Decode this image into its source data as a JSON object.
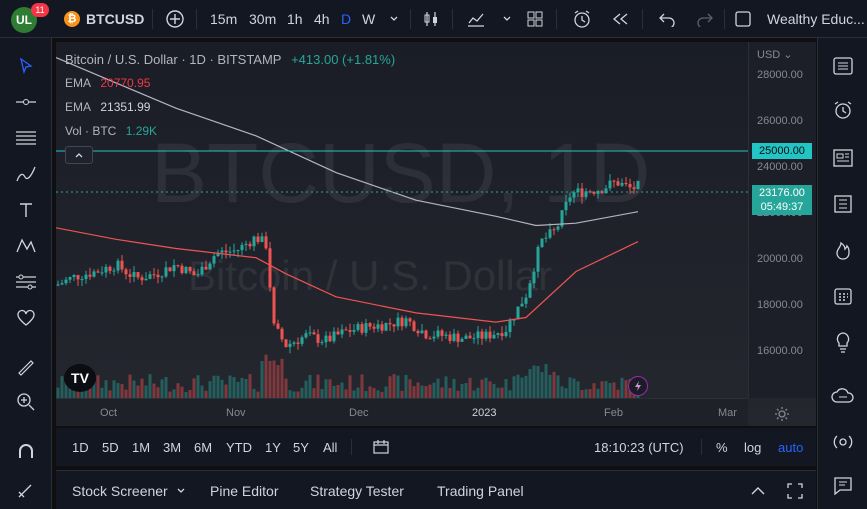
{
  "header": {
    "notification_count": "11",
    "symbol": "BTCUSD",
    "intervals": [
      "15m",
      "30m",
      "1h",
      "4h",
      "D",
      "W"
    ],
    "active_interval": "D",
    "account_name": "Wealthy Educ..."
  },
  "chart": {
    "title": "Bitcoin / U.S. Dollar · 1D · BITSTAMP",
    "change": "+413.00 (+1.81%)",
    "watermark_symbol": "BTCUSD, 1D",
    "watermark_name": "Bitcoin / U.S. Dollar",
    "indicators": [
      {
        "name": "EMA",
        "value": "20770.95",
        "color": "#f23645"
      },
      {
        "name": "EMA",
        "value": "21351.99",
        "color": "#b2b5be"
      },
      {
        "name": "Vol · BTC",
        "value": "1.29K",
        "color": "#26a69a"
      }
    ],
    "currency_label": "USD"
  },
  "chart_data": {
    "type": "candlestick",
    "price_ticks": [
      "28000.00",
      "26000.00",
      "24000.00",
      "22000.00",
      "20000.00",
      "18000.00",
      "16000.00"
    ],
    "horizontal_line": "25000.00",
    "last_price": "23176.00",
    "countdown": "05:49:37",
    "time_ticks": [
      "Oct",
      "Nov",
      "Dec",
      "2023",
      "Feb",
      "Mar"
    ],
    "ylim": [
      15000,
      29000
    ]
  },
  "rangebar": {
    "ranges": [
      "1D",
      "5D",
      "1M",
      "3M",
      "6M",
      "YTD",
      "1Y",
      "5Y",
      "All"
    ],
    "time": "18:10:23 (UTC)",
    "percent": "%",
    "log": "log",
    "auto": "auto"
  },
  "bottom_panel": {
    "tabs": [
      "Stock Screener",
      "Pine Editor",
      "Strategy Tester",
      "Trading Panel"
    ]
  },
  "colors": {
    "up": "#26a69a",
    "down": "#ef5350",
    "accent": "#2962ff",
    "hline": "#22ab94"
  }
}
